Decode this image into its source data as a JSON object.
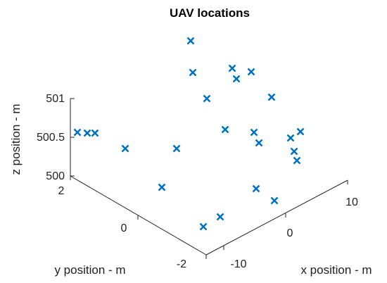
{
  "chart_data": {
    "type": "scatter",
    "title": "UAV locations",
    "xlabel": "x position - m",
    "ylabel": "y position - m",
    "zlabel": "z position - m",
    "x_ticks": [
      "-10",
      "0",
      "10"
    ],
    "y_ticks": [
      "-2",
      "0",
      "2"
    ],
    "z_ticks": [
      "500",
      "500.5",
      "501"
    ],
    "marker": "x",
    "color": "#0072bd",
    "grid": false,
    "note": "3-D scatter; points listed as projected screen-space readings on the figure",
    "points": [
      {
        "u": 271,
        "v": 58
      },
      {
        "u": 274,
        "v": 103
      },
      {
        "u": 330,
        "v": 97
      },
      {
        "u": 336,
        "v": 112
      },
      {
        "u": 357,
        "v": 102
      },
      {
        "u": 294,
        "v": 140
      },
      {
        "u": 386,
        "v": 138
      },
      {
        "u": 110,
        "v": 188
      },
      {
        "u": 124,
        "v": 189
      },
      {
        "u": 135,
        "v": 189
      },
      {
        "u": 178,
        "v": 211
      },
      {
        "u": 251,
        "v": 211
      },
      {
        "u": 320,
        "v": 184
      },
      {
        "u": 361,
        "v": 188
      },
      {
        "u": 368,
        "v": 203
      },
      {
        "u": 413,
        "v": 196
      },
      {
        "u": 427,
        "v": 187
      },
      {
        "u": 418,
        "v": 215
      },
      {
        "u": 422,
        "v": 228
      },
      {
        "u": 230,
        "v": 266
      },
      {
        "u": 364,
        "v": 268
      },
      {
        "u": 390,
        "v": 285
      },
      {
        "u": 313,
        "v": 308
      },
      {
        "u": 289,
        "v": 322
      }
    ]
  }
}
